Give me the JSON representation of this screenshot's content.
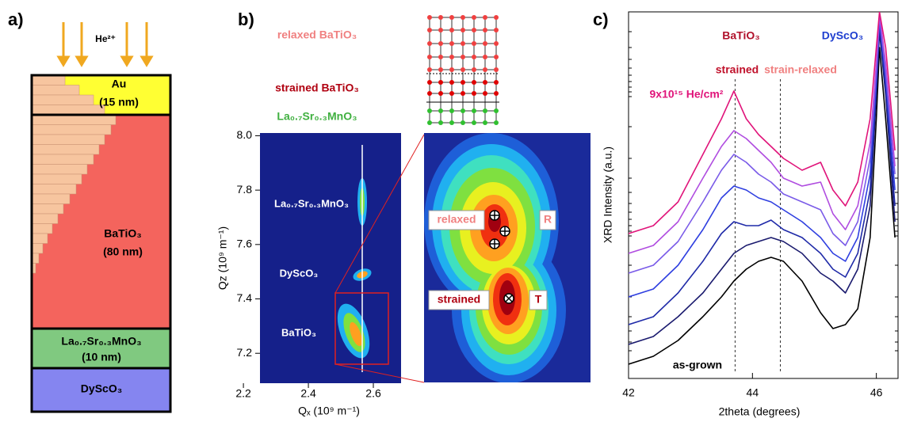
{
  "panel_a": {
    "label": "a)",
    "beam": "He²⁺",
    "layers": [
      {
        "name": "Au",
        "thickness": "(15 nm)"
      },
      {
        "name": "BaTiO₃",
        "thickness": "(80 nm)"
      },
      {
        "name": "La₀.₇Sr₀.₃MnO₃",
        "thickness": "(10 nm)"
      },
      {
        "name": "DyScO₃"
      }
    ]
  },
  "chart_data": [
    {
      "type": "heatmap",
      "label": "b)",
      "xlabel": "Qₓ (10⁹ m⁻¹)",
      "ylabel": "Qz (10⁹ m⁻¹)",
      "xlim": [
        2.19,
        2.7
      ],
      "xticks": [
        2.2,
        2.4,
        2.6
      ],
      "ylim": [
        7.09,
        8.01
      ],
      "yticks": [
        7.2,
        7.4,
        7.6,
        7.8,
        {
          "value": 8,
          "label": "8.0"
        }
      ],
      "peak_labels": [
        "La₀.₇Sr₀.₃MnO₃",
        "DyScO₃",
        "BaTiO₃"
      ],
      "inset_labels": {
        "relaxed": "relaxed",
        "R": "R",
        "strained": "strained",
        "T": "T"
      },
      "schematic_labels": [
        "relaxed BaTiO₃",
        "strained BaTiO₃",
        "La₀.₇Sr₀.₃MnO₃"
      ]
    },
    {
      "type": "line",
      "label": "c)",
      "xlabel": "2theta (degrees)",
      "ylabel": "XRD Intensity (a.u.)",
      "xlim": [
        42,
        46.35
      ],
      "xticks": [
        42,
        44,
        46
      ],
      "ylim": [
        0,
        463
      ],
      "x": [
        42,
        42.4,
        42.8,
        43.2,
        43.5,
        43.7,
        43.9,
        44.1,
        44.3,
        44.5,
        44.8,
        45.1,
        45.3,
        45.5,
        45.7,
        45.9,
        46,
        46.05,
        46.15,
        46.3
      ],
      "series": [
        {
          "name": "as-grown",
          "color": "#000000",
          "values": [
            18,
            28,
            48,
            78,
            103,
            123,
            138,
            148,
            153,
            148,
            123,
            83,
            63,
            68,
            88,
            178,
            328,
            418,
            328,
            178
          ]
        },
        {
          "color": "#1a1a6e",
          "values": [
            43,
            53,
            78,
            108,
            138,
            158,
            168,
            173,
            178,
            173,
            158,
            133,
            123,
            108,
            138,
            218,
            358,
            438,
            358,
            198
          ]
        },
        {
          "color": "#1f2aa8",
          "values": [
            68,
            78,
            108,
            148,
            183,
            198,
            193,
            193,
            200,
            188,
            178,
            158,
            138,
            128,
            158,
            238,
            368,
            448,
            368,
            218
          ]
        },
        {
          "color": "#2f3fe0",
          "values": [
            103,
            113,
            143,
            188,
            228,
            243,
            238,
            228,
            223,
            213,
            198,
            178,
            158,
            148,
            178,
            258,
            378,
            453,
            378,
            238
          ]
        },
        {
          "color": "#7a5be8",
          "values": [
            133,
            143,
            173,
            223,
            263,
            283,
            273,
            258,
            248,
            233,
            223,
            213,
            183,
            168,
            198,
            278,
            388,
            458,
            388,
            258
          ]
        },
        {
          "color": "#b04de0",
          "values": [
            158,
            168,
            198,
            253,
            293,
            313,
            303,
            288,
            273,
            253,
            243,
            248,
            208,
            188,
            218,
            298,
            398,
            460,
            398,
            268
          ]
        },
        {
          "name": "9x10¹⁵ He/cm²",
          "color": "#e0147a",
          "values": [
            183,
            193,
            223,
            283,
            328,
            363,
            328,
            308,
            293,
            278,
            263,
            273,
            238,
            218,
            248,
            328,
            418,
            463,
            418,
            288
          ]
        }
      ],
      "reference_lines": [
        43.72,
        44.45
      ],
      "annotations": [
        "BaTiO₃",
        "DyScO₃",
        "strained",
        "strain-relaxed"
      ]
    }
  ]
}
